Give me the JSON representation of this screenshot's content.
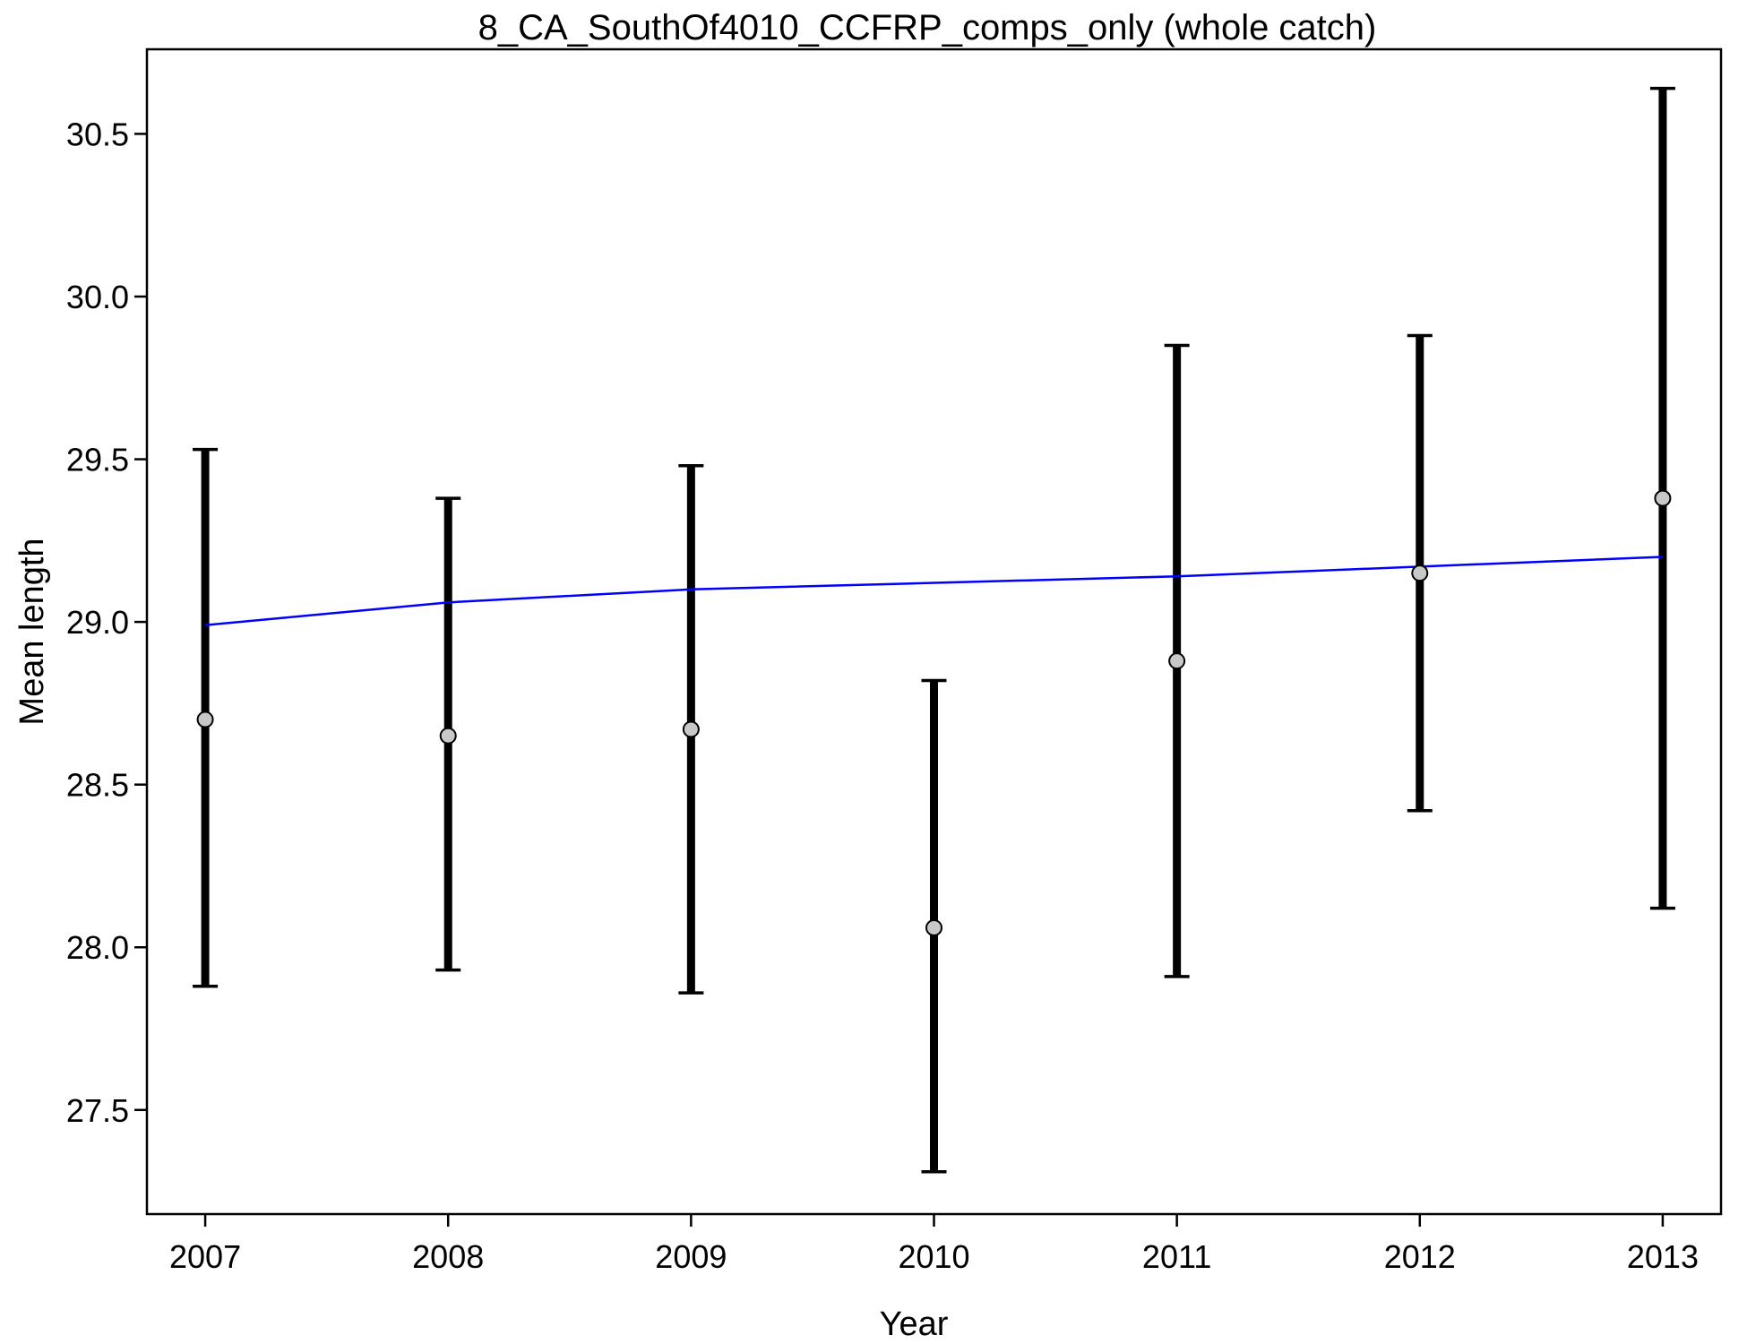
{
  "chart_data": {
    "type": "scatter",
    "title": "8_CA_SouthOf4010_CCFRP_comps_only (whole catch)",
    "xlabel": "Year",
    "ylabel": "Mean length",
    "xlim": [
      2006.76,
      2013.24
    ],
    "ylim": [
      27.18,
      30.76
    ],
    "x_ticks": [
      2007,
      2008,
      2009,
      2010,
      2011,
      2012,
      2013
    ],
    "y_ticks": [
      27.5,
      28.0,
      28.5,
      29.0,
      29.5,
      30.0,
      30.5
    ],
    "y_tick_labels": [
      "27.5",
      "28.0",
      "28.5",
      "29.0",
      "29.5",
      "30.0",
      "30.5"
    ],
    "grid": false,
    "series": [
      {
        "type": "errorbar",
        "x": [
          2007,
          2008,
          2009,
          2010,
          2011,
          2012,
          2013
        ],
        "y": [
          28.7,
          28.65,
          28.67,
          28.06,
          28.88,
          29.15,
          29.38
        ],
        "lower": [
          27.88,
          27.93,
          27.86,
          27.31,
          27.91,
          28.42,
          28.12
        ],
        "upper": [
          29.53,
          29.38,
          29.48,
          28.82,
          29.85,
          29.88,
          30.64
        ],
        "marker_color": "#c8c8c8",
        "bar_color": "#000000"
      },
      {
        "type": "line",
        "x": [
          2007,
          2008,
          2009,
          2010,
          2011,
          2012,
          2013
        ],
        "y": [
          28.99,
          29.06,
          29.1,
          29.12,
          29.14,
          29.17,
          29.2
        ],
        "color": "#0000ff"
      }
    ]
  }
}
